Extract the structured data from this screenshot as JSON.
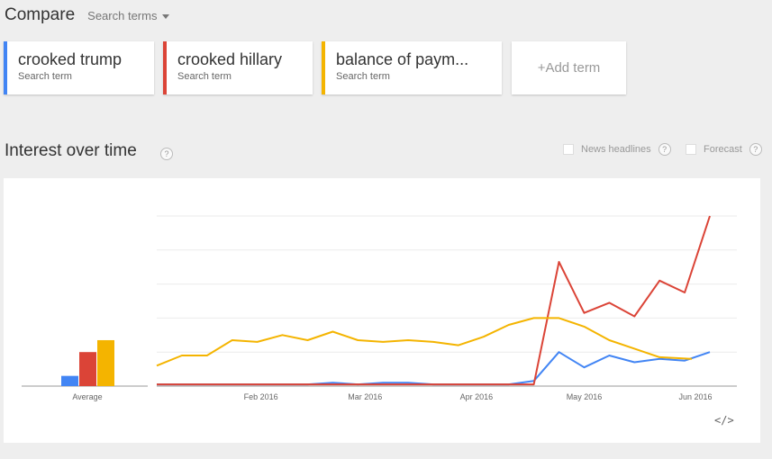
{
  "header": {
    "title": "Compare",
    "search_terms_label": "Search terms"
  },
  "terms": [
    {
      "name": "crooked trump",
      "sub": "Search term",
      "color": "#4285f4"
    },
    {
      "name": "crooked hillary",
      "sub": "Search term",
      "color": "#db4437"
    },
    {
      "name": "balance of paym...",
      "sub": "Search term",
      "color": "#f4b400"
    }
  ],
  "add_term_label": "+Add term",
  "interest": {
    "title": "Interest over time",
    "help_glyph": "?",
    "news_label": "News headlines",
    "forecast_label": "Forecast"
  },
  "embed_glyph": "</>",
  "chart_data": {
    "type": "line",
    "x_ticks": [
      "Feb 2016",
      "Mar 2016",
      "Apr 2016",
      "May 2016",
      "Jun 2016"
    ],
    "averages": {
      "label": "Average",
      "values": [
        6,
        20,
        27
      ]
    },
    "ylim": [
      0,
      100
    ],
    "grid": true,
    "legend": "none",
    "x": [
      "2016-01-03",
      "2016-01-10",
      "2016-01-17",
      "2016-01-24",
      "2016-01-31",
      "2016-02-07",
      "2016-02-14",
      "2016-02-21",
      "2016-02-28",
      "2016-03-06",
      "2016-03-13",
      "2016-03-20",
      "2016-03-27",
      "2016-04-03",
      "2016-04-10",
      "2016-04-17",
      "2016-04-24",
      "2016-05-01",
      "2016-05-08",
      "2016-05-15",
      "2016-05-22",
      "2016-05-29",
      "2016-06-05"
    ],
    "series": [
      {
        "name": "crooked trump",
        "color": "#4285f4",
        "values": [
          1,
          1,
          1,
          1,
          1,
          1,
          1,
          2,
          1,
          2,
          2,
          1,
          1,
          1,
          1,
          3,
          20,
          11,
          18,
          14,
          16,
          15,
          20
        ]
      },
      {
        "name": "crooked hillary",
        "color": "#db4437",
        "values": [
          1,
          1,
          1,
          1,
          1,
          1,
          1,
          1,
          1,
          1,
          1,
          1,
          1,
          1,
          1,
          1,
          73,
          43,
          49,
          41,
          62,
          55,
          100
        ]
      },
      {
        "name": "balance of paym...",
        "color": "#f4b400",
        "values": [
          12,
          18,
          18,
          27,
          26,
          30,
          27,
          32,
          27,
          26,
          27,
          26,
          24,
          29,
          36,
          40,
          40,
          35,
          27,
          22,
          17,
          16,
          null
        ]
      }
    ]
  }
}
